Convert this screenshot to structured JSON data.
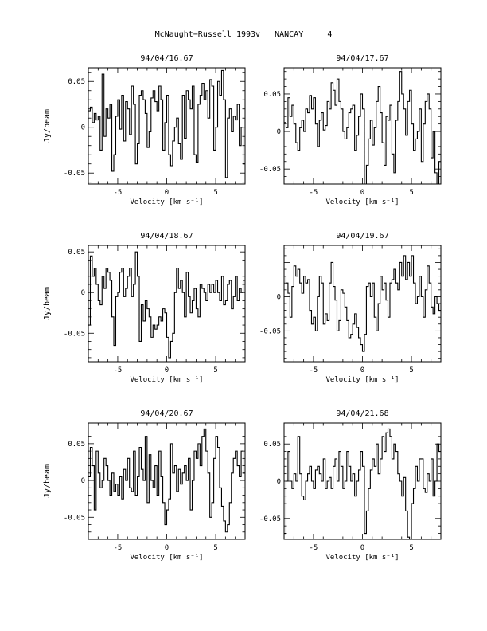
{
  "page": {
    "title": "McNaught−Russell 1993v   NANCAY     4"
  },
  "chart_data": [
    {
      "type": "line",
      "title": "94/04/16.67",
      "xlabel": "Velocity [km s⁻¹]",
      "ylabel": "Jy/beam",
      "xlim": [
        -8,
        8
      ],
      "ylim": [
        -0.062,
        0.065
      ],
      "x_ticks": [
        "-5",
        "0",
        "5"
      ],
      "y_ticks": [
        "-0.05",
        "0",
        "0.05"
      ],
      "x": [
        -8.0,
        -7.8,
        -7.6,
        -7.4,
        -7.2,
        -7.0,
        -6.8,
        -6.6,
        -6.4,
        -6.2,
        -6.0,
        -5.8,
        -5.6,
        -5.4,
        -5.2,
        -5.0,
        -4.8,
        -4.6,
        -4.4,
        -4.2,
        -4.0,
        -3.8,
        -3.6,
        -3.4,
        -3.2,
        -3.0,
        -2.8,
        -2.6,
        -2.4,
        -2.2,
        -2.0,
        -1.8,
        -1.6,
        -1.4,
        -1.2,
        -1.0,
        -0.8,
        -0.6,
        -0.4,
        -0.2,
        0.0,
        0.2,
        0.4,
        0.6,
        0.8,
        1.0,
        1.2,
        1.4,
        1.6,
        1.8,
        2.0,
        2.2,
        2.4,
        2.6,
        2.8,
        3.0,
        3.2,
        3.4,
        3.6,
        3.8,
        4.0,
        4.2,
        4.4,
        4.6,
        4.8,
        5.0,
        5.2,
        5.4,
        5.6,
        5.8,
        6.0,
        6.2,
        6.4,
        6.6,
        6.8,
        7.0,
        7.2,
        7.4,
        7.6,
        7.8
      ],
      "series": [
        {
          "values": [
            0.018,
            0.022,
            0.005,
            0.015,
            0.008,
            0.012,
            -0.025,
            0.058,
            -0.01,
            0.02,
            0.01,
            0.025,
            -0.048,
            -0.03,
            0.012,
            0.03,
            -0.002,
            0.035,
            -0.015,
            0.028,
            0.02,
            -0.008,
            0.045,
            0.025,
            -0.04,
            -0.018,
            0.035,
            0.04,
            0.03,
            0.015,
            -0.022,
            -0.005,
            0.032,
            0.04,
            0.028,
            0.018,
            0.045,
            0.03,
            -0.025,
            0.005,
            0.035,
            -0.03,
            -0.042,
            -0.015,
            0.0,
            0.01,
            -0.018,
            -0.035,
            0.035,
            -0.012,
            0.04,
            0.03,
            0.02,
            0.045,
            -0.03,
            -0.038,
            0.025,
            0.035,
            0.048,
            0.03,
            0.04,
            0.01,
            0.052,
            0.045,
            -0.025,
            0.0,
            0.05,
            0.035,
            0.062,
            0.03,
            -0.055,
            0.01,
            0.02,
            -0.005,
            0.012,
            0.008,
            0.025,
            -0.02,
            0.0,
            -0.04
          ]
        }
      ]
    },
    {
      "type": "line",
      "title": "94/04/17.67",
      "xlabel": "Velocity [km s⁻¹]",
      "ylabel": "",
      "xlim": [
        -8,
        8
      ],
      "ylim": [
        -0.07,
        0.085
      ],
      "x_ticks": [
        "-5",
        "0",
        "5"
      ],
      "y_ticks": [
        "-0.05",
        "0",
        "0.05"
      ],
      "x": [
        -8.0,
        -7.8,
        -7.6,
        -7.4,
        -7.2,
        -7.0,
        -6.8,
        -6.6,
        -6.4,
        -6.2,
        -6.0,
        -5.8,
        -5.6,
        -5.4,
        -5.2,
        -5.0,
        -4.8,
        -4.6,
        -4.4,
        -4.2,
        -4.0,
        -3.8,
        -3.6,
        -3.4,
        -3.2,
        -3.0,
        -2.8,
        -2.6,
        -2.4,
        -2.2,
        -2.0,
        -1.8,
        -1.6,
        -1.4,
        -1.2,
        -1.0,
        -0.8,
        -0.6,
        -0.4,
        -0.2,
        0.0,
        0.2,
        0.4,
        0.6,
        0.8,
        1.0,
        1.2,
        1.4,
        1.6,
        1.8,
        2.0,
        2.2,
        2.4,
        2.6,
        2.8,
        3.0,
        3.2,
        3.4,
        3.6,
        3.8,
        4.0,
        4.2,
        4.4,
        4.6,
        4.8,
        5.0,
        5.2,
        5.4,
        5.6,
        5.8,
        6.0,
        6.2,
        6.4,
        6.6,
        6.8,
        7.0,
        7.2,
        7.4,
        7.6,
        7.8
      ],
      "series": [
        {
          "values": [
            0.012,
            0.005,
            0.045,
            0.02,
            0.035,
            0.01,
            -0.015,
            -0.025,
            0.005,
            0.015,
            0.0,
            0.03,
            0.025,
            0.048,
            0.03,
            0.045,
            0.01,
            -0.02,
            0.015,
            0.025,
            0.002,
            0.008,
            0.04,
            0.03,
            0.065,
            0.055,
            0.035,
            0.07,
            0.04,
            0.03,
            0.0,
            -0.01,
            0.005,
            0.025,
            0.03,
            0.035,
            -0.025,
            -0.005,
            0.02,
            0.05,
            0.03,
            -0.07,
            -0.045,
            -0.01,
            0.015,
            -0.018,
            0.005,
            0.04,
            0.06,
            0.025,
            -0.015,
            -0.045,
            0.02,
            0.015,
            0.035,
            -0.03,
            -0.055,
            0.015,
            0.04,
            0.08,
            0.05,
            0.03,
            -0.005,
            0.04,
            0.055,
            0.01,
            -0.025,
            -0.01,
            0.0,
            0.03,
            -0.04,
            0.01,
            0.04,
            0.05,
            0.03,
            -0.035,
            0.0,
            -0.055,
            -0.07,
            -0.04
          ]
        }
      ]
    },
    {
      "type": "line",
      "title": "94/04/18.67",
      "xlabel": "Velocity [km s⁻¹]",
      "ylabel": "Jy/beam",
      "xlim": [
        -8,
        8
      ],
      "ylim": [
        -0.085,
        0.058
      ],
      "x_ticks": [
        "-5",
        "0",
        "5"
      ],
      "y_ticks": [
        "-0.05",
        "0",
        "0.05"
      ],
      "x": [
        -8.0,
        -7.8,
        -7.6,
        -7.4,
        -7.2,
        -7.0,
        -6.8,
        -6.6,
        -6.4,
        -6.2,
        -6.0,
        -5.8,
        -5.6,
        -5.4,
        -5.2,
        -5.0,
        -4.8,
        -4.6,
        -4.4,
        -4.2,
        -4.0,
        -3.8,
        -3.6,
        -3.4,
        -3.2,
        -3.0,
        -2.8,
        -2.6,
        -2.4,
        -2.2,
        -2.0,
        -1.8,
        -1.6,
        -1.4,
        -1.2,
        -1.0,
        -0.8,
        -0.6,
        -0.4,
        -0.2,
        0.0,
        0.2,
        0.4,
        0.6,
        0.8,
        1.0,
        1.2,
        1.4,
        1.6,
        1.8,
        2.0,
        2.2,
        2.4,
        2.6,
        2.8,
        3.0,
        3.2,
        3.4,
        3.6,
        3.8,
        4.0,
        4.2,
        4.4,
        4.6,
        4.8,
        5.0,
        5.2,
        5.4,
        5.6,
        5.8,
        6.0,
        6.2,
        6.4,
        6.6,
        6.8,
        7.0,
        7.2,
        7.4,
        7.6,
        7.8
      ],
      "series": [
        {
          "values": [
            -0.04,
            0.045,
            0.02,
            0.03,
            0.01,
            -0.01,
            -0.015,
            0.02,
            0.005,
            0.03,
            0.025,
            0.015,
            -0.03,
            -0.065,
            -0.005,
            0.0,
            0.025,
            0.03,
            -0.005,
            0.005,
            0.02,
            0.03,
            -0.005,
            0.01,
            0.05,
            0.02,
            -0.06,
            -0.015,
            -0.035,
            -0.01,
            -0.02,
            -0.03,
            -0.055,
            -0.04,
            -0.045,
            -0.04,
            -0.03,
            -0.035,
            -0.02,
            -0.025,
            -0.055,
            -0.08,
            -0.06,
            -0.05,
            0.0,
            0.03,
            0.005,
            0.015,
            0.0,
            -0.03,
            0.025,
            -0.005,
            -0.025,
            -0.01,
            0.005,
            -0.02,
            -0.03,
            0.01,
            0.005,
            0.0,
            -0.01,
            0.01,
            0.0,
            0.01,
            0.0,
            0.015,
            0.0,
            -0.01,
            0.02,
            -0.015,
            -0.01,
            0.01,
            0.015,
            -0.02,
            -0.005,
            0.02,
            -0.01,
            0.005,
            0.0,
            0.015
          ]
        }
      ]
    },
    {
      "type": "line",
      "title": "94/04/19.67",
      "xlabel": "Velocity [km s⁻¹]",
      "ylabel": "",
      "xlim": [
        -8,
        8
      ],
      "ylim": [
        -0.095,
        0.075
      ],
      "x_ticks": [
        "-5",
        "0",
        "5"
      ],
      "y_ticks": [
        "-0.05",
        "0"
      ],
      "x": [
        -8.0,
        -7.8,
        -7.6,
        -7.4,
        -7.2,
        -7.0,
        -6.8,
        -6.6,
        -6.4,
        -6.2,
        -6.0,
        -5.8,
        -5.6,
        -5.4,
        -5.2,
        -5.0,
        -4.8,
        -4.6,
        -4.4,
        -4.2,
        -4.0,
        -3.8,
        -3.6,
        -3.4,
        -3.2,
        -3.0,
        -2.8,
        -2.6,
        -2.4,
        -2.2,
        -2.0,
        -1.8,
        -1.6,
        -1.4,
        -1.2,
        -1.0,
        -0.8,
        -0.6,
        -0.4,
        -0.2,
        0.0,
        0.2,
        0.4,
        0.6,
        0.8,
        1.0,
        1.2,
        1.4,
        1.6,
        1.8,
        2.0,
        2.2,
        2.4,
        2.6,
        2.8,
        3.0,
        3.2,
        3.4,
        3.6,
        3.8,
        4.0,
        4.2,
        4.4,
        4.6,
        4.8,
        5.0,
        5.2,
        5.4,
        5.6,
        5.8,
        6.0,
        6.2,
        6.4,
        6.6,
        6.8,
        7.0,
        7.2,
        7.4,
        7.6,
        7.8
      ],
      "series": [
        {
          "values": [
            0.03,
            0.02,
            0.005,
            -0.03,
            0.015,
            0.045,
            0.03,
            0.04,
            0.02,
            0.005,
            0.03,
            0.02,
            0.025,
            -0.02,
            -0.04,
            -0.03,
            -0.05,
            0.0,
            0.03,
            0.02,
            -0.04,
            -0.025,
            -0.035,
            0.02,
            0.05,
            0.015,
            -0.005,
            -0.05,
            -0.035,
            0.01,
            0.005,
            -0.015,
            -0.035,
            -0.06,
            -0.055,
            -0.04,
            -0.025,
            -0.045,
            -0.06,
            -0.07,
            -0.08,
            -0.055,
            0.015,
            0.02,
            0.0,
            0.02,
            -0.03,
            -0.05,
            -0.01,
            0.03,
            0.01,
            0.02,
            -0.005,
            -0.03,
            0.02,
            0.025,
            0.04,
            0.02,
            0.01,
            0.05,
            0.03,
            0.06,
            0.025,
            0.05,
            0.03,
            0.06,
            0.02,
            -0.01,
            0.0,
            0.03,
            0.0,
            -0.03,
            0.01,
            0.045,
            0.02,
            -0.015,
            -0.025,
            0.0,
            -0.01,
            -0.02
          ]
        }
      ]
    },
    {
      "type": "line",
      "title": "94/04/20.67",
      "xlabel": "Velocity [km s⁻¹]",
      "ylabel": "Jy/beam",
      "xlim": [
        -8,
        8
      ],
      "ylim": [
        -0.08,
        0.078
      ],
      "x_ticks": [
        "-5",
        "0",
        "5"
      ],
      "y_ticks": [
        "-0.05",
        "0",
        "0.05"
      ],
      "x": [
        -8.0,
        -7.8,
        -7.6,
        -7.4,
        -7.2,
        -7.0,
        -6.8,
        -6.6,
        -6.4,
        -6.2,
        -6.0,
        -5.8,
        -5.6,
        -5.4,
        -5.2,
        -5.0,
        -4.8,
        -4.6,
        -4.4,
        -4.2,
        -4.0,
        -3.8,
        -3.6,
        -3.4,
        -3.2,
        -3.0,
        -2.8,
        -2.6,
        -2.4,
        -2.2,
        -2.0,
        -1.8,
        -1.6,
        -1.4,
        -1.2,
        -1.0,
        -0.8,
        -0.6,
        -0.4,
        -0.2,
        0.0,
        0.2,
        0.4,
        0.6,
        0.8,
        1.0,
        1.2,
        1.4,
        1.6,
        1.8,
        2.0,
        2.2,
        2.4,
        2.6,
        2.8,
        3.0,
        3.2,
        3.4,
        3.6,
        3.8,
        4.0,
        4.2,
        4.4,
        4.6,
        4.8,
        5.0,
        5.2,
        5.4,
        5.6,
        5.8,
        6.0,
        6.2,
        6.4,
        6.6,
        6.8,
        7.0,
        7.2,
        7.4,
        7.6,
        7.8
      ],
      "series": [
        {
          "values": [
            0.005,
            0.045,
            0.02,
            -0.04,
            0.04,
            0.01,
            -0.01,
            0.0,
            0.03,
            0.02,
            0.0,
            -0.02,
            0.01,
            -0.015,
            -0.005,
            -0.02,
            0.005,
            -0.025,
            0.015,
            0.0,
            0.03,
            -0.01,
            -0.015,
            0.04,
            -0.02,
            0.005,
            0.045,
            0.015,
            0.0,
            0.06,
            -0.03,
            0.035,
            0.0,
            -0.01,
            0.02,
            -0.02,
            0.04,
            0.005,
            -0.03,
            -0.06,
            -0.04,
            -0.025,
            0.05,
            0.01,
            0.02,
            -0.015,
            0.015,
            -0.005,
            0.01,
            0.02,
            0.0,
            0.03,
            -0.04,
            0.0,
            0.04,
            0.03,
            0.05,
            0.02,
            0.06,
            0.07,
            0.04,
            0.01,
            -0.05,
            -0.03,
            0.03,
            0.06,
            0.045,
            -0.01,
            -0.035,
            -0.055,
            -0.07,
            -0.06,
            -0.03,
            0.01,
            0.03,
            0.04,
            0.02,
            0.005,
            0.04,
            0.01
          ]
        }
      ]
    },
    {
      "type": "line",
      "title": "94/04/21.68",
      "xlabel": "Velocity [km s⁻¹]",
      "ylabel": "",
      "xlim": [
        -8,
        8
      ],
      "ylim": [
        -0.078,
        0.078
      ],
      "x_ticks": [
        "-5",
        "0",
        "5"
      ],
      "y_ticks": [
        "-0.05",
        "0",
        "0.05"
      ],
      "x": [
        -8.0,
        -7.8,
        -7.6,
        -7.4,
        -7.2,
        -7.0,
        -6.8,
        -6.6,
        -6.4,
        -6.2,
        -6.0,
        -5.8,
        -5.6,
        -5.4,
        -5.2,
        -5.0,
        -4.8,
        -4.6,
        -4.4,
        -4.2,
        -4.0,
        -3.8,
        -3.6,
        -3.4,
        -3.2,
        -3.0,
        -2.8,
        -2.6,
        -2.4,
        -2.2,
        -2.0,
        -1.8,
        -1.6,
        -1.4,
        -1.2,
        -1.0,
        -0.8,
        -0.6,
        -0.4,
        -0.2,
        0.0,
        0.2,
        0.4,
        0.6,
        0.8,
        1.0,
        1.2,
        1.4,
        1.6,
        1.8,
        2.0,
        2.2,
        2.4,
        2.6,
        2.8,
        3.0,
        3.2,
        3.4,
        3.6,
        3.8,
        4.0,
        4.2,
        4.4,
        4.6,
        4.8,
        5.0,
        5.2,
        5.4,
        5.6,
        5.8,
        6.0,
        6.2,
        6.4,
        6.6,
        6.8,
        7.0,
        7.2,
        7.4,
        7.6,
        7.8
      ],
      "series": [
        {
          "values": [
            -0.07,
            0.0,
            0.04,
            0.0,
            -0.01,
            0.01,
            0.0,
            0.06,
            0.01,
            -0.02,
            -0.025,
            0.0,
            0.01,
            0.02,
            0.0,
            -0.01,
            0.015,
            0.02,
            0.01,
            0.0,
            0.03,
            -0.01,
            0.0,
            0.005,
            -0.01,
            0.02,
            0.03,
            0.0,
            0.04,
            0.02,
            -0.01,
            0.0,
            0.04,
            0.02,
            0.0,
            0.01,
            -0.02,
            0.0,
            0.015,
            0.04,
            0.02,
            -0.07,
            -0.04,
            -0.01,
            0.015,
            0.03,
            0.02,
            0.05,
            0.01,
            0.03,
            0.06,
            0.04,
            0.065,
            0.07,
            0.06,
            0.03,
            0.05,
            0.04,
            0.01,
            0.0,
            -0.02,
            0.005,
            -0.04,
            -0.075,
            -0.08,
            -0.03,
            -0.01,
            0.02,
            0.0,
            0.03,
            0.03,
            -0.01,
            -0.015,
            0.01,
            0.0,
            0.03,
            -0.02,
            0.0,
            0.05,
            0.04
          ]
        }
      ]
    }
  ]
}
